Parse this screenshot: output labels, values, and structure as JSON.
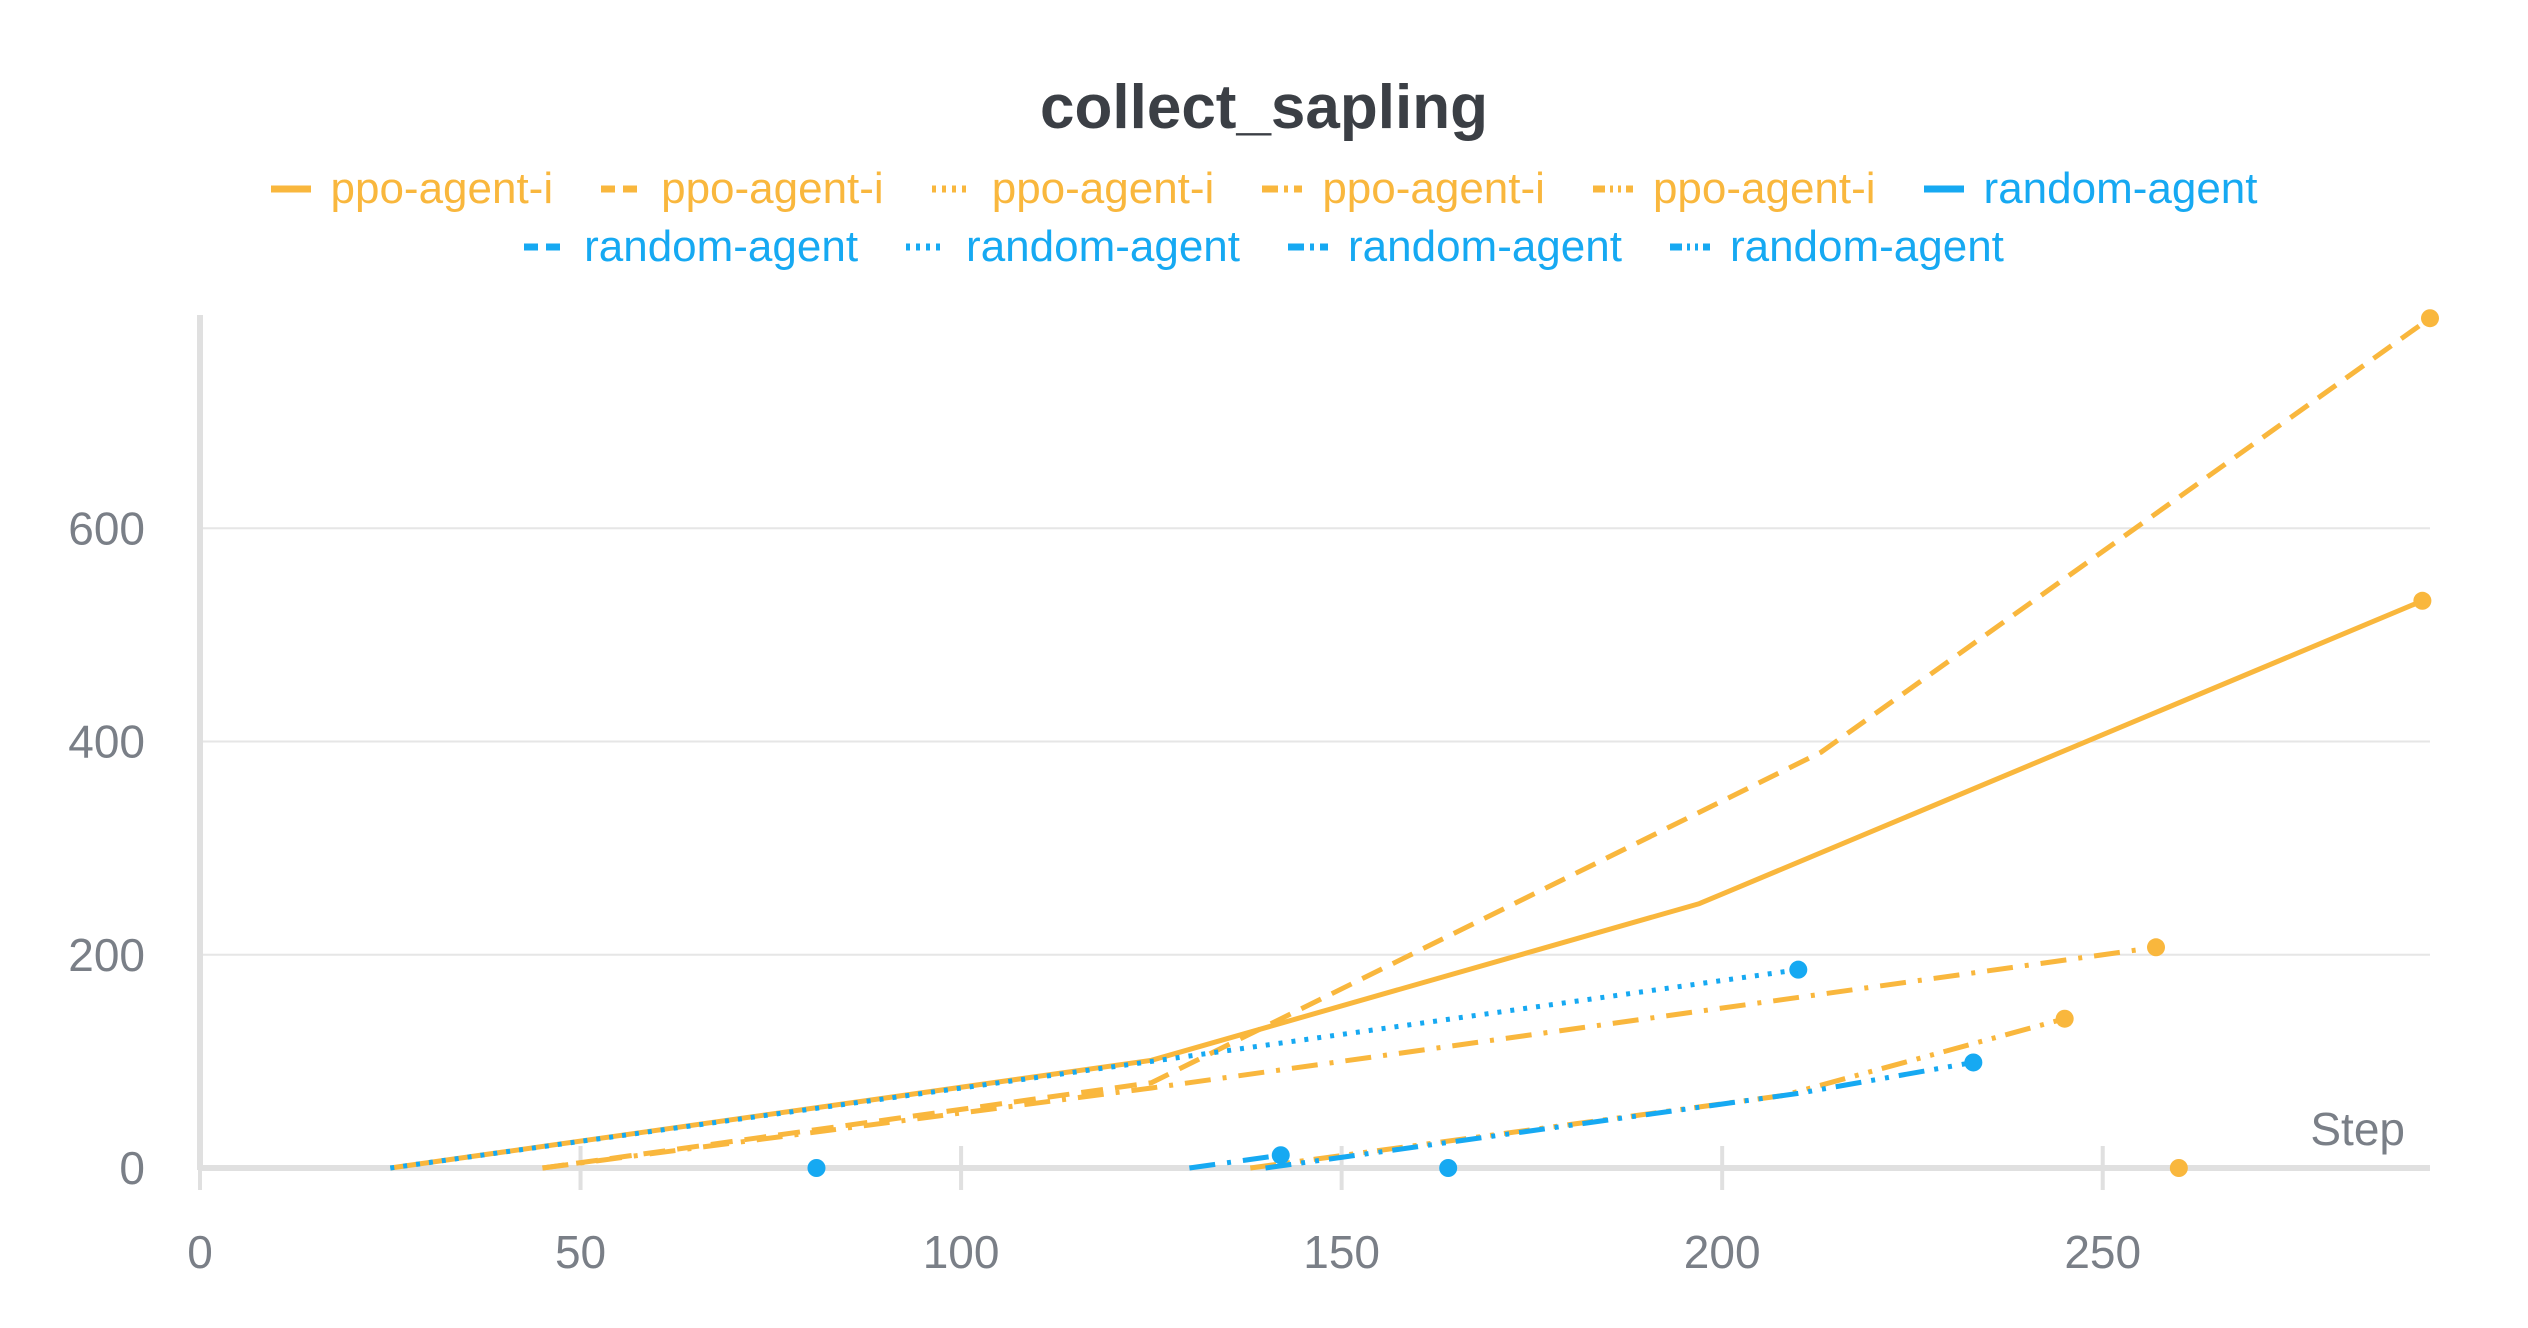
{
  "chart_data": {
    "type": "line",
    "title": "collect_sapling",
    "xlabel": "Step",
    "ylabel": "",
    "xlim": [
      0,
      293
    ],
    "ylim": [
      0,
      800
    ],
    "x_ticks": [
      0,
      50,
      100,
      150,
      200,
      250
    ],
    "y_ticks": [
      0,
      200,
      400,
      600
    ],
    "grid": "horizontal",
    "legend_position": "top-center",
    "colors": {
      "ppo": "#f9b73d",
      "random": "#16a9f2",
      "axis": "#e0e0e0",
      "grid": "#e6e6e6",
      "tick_text": "#7a7f87",
      "title": "#3b3f45"
    },
    "series": [
      {
        "name": "ppo-agent-i",
        "color": "#f9b73d",
        "dash": "solid",
        "x": [
          25,
          125,
          197,
          292
        ],
        "y": [
          0,
          101,
          248,
          532
        ],
        "end_marker": true
      },
      {
        "name": "ppo-agent-i",
        "color": "#f9b73d",
        "dash": "dashed",
        "x": [
          45,
          125,
          213,
          293
        ],
        "y": [
          0,
          80,
          390,
          797
        ],
        "end_marker": true
      },
      {
        "name": "ppo-agent-i",
        "color": "#f9b73d",
        "dash": "dotted",
        "x": [
          260
        ],
        "y": [
          0
        ],
        "end_marker": true
      },
      {
        "name": "ppo-agent-i",
        "color": "#f9b73d",
        "dash": "dashdot",
        "x": [
          45,
          125,
          257
        ],
        "y": [
          0,
          75,
          207
        ],
        "end_marker": true
      },
      {
        "name": "ppo-agent-i",
        "color": "#f9b73d",
        "dash": "dashdotdot",
        "x": [
          138,
          208,
          245
        ],
        "y": [
          0,
          68,
          140
        ],
        "end_marker": true
      },
      {
        "name": "random-agent",
        "color": "#16a9f2",
        "dash": "solid",
        "x": [
          81
        ],
        "y": [
          0
        ],
        "end_marker": true
      },
      {
        "name": "random-agent",
        "color": "#16a9f2",
        "dash": "dashed",
        "x": [
          164
        ],
        "y": [
          0
        ],
        "end_marker": true
      },
      {
        "name": "random-agent",
        "color": "#16a9f2",
        "dash": "dotted",
        "x": [
          25,
          125,
          210
        ],
        "y": [
          0,
          100,
          186
        ],
        "end_marker": true
      },
      {
        "name": "random-agent",
        "color": "#16a9f2",
        "dash": "dashdot",
        "x": [
          130,
          142
        ],
        "y": [
          0,
          12
        ],
        "end_marker": true
      },
      {
        "name": "random-agent",
        "color": "#16a9f2",
        "dash": "dashdotdot",
        "x": [
          140,
          210,
          233
        ],
        "y": [
          0,
          70,
          99
        ],
        "end_marker": true
      }
    ]
  }
}
